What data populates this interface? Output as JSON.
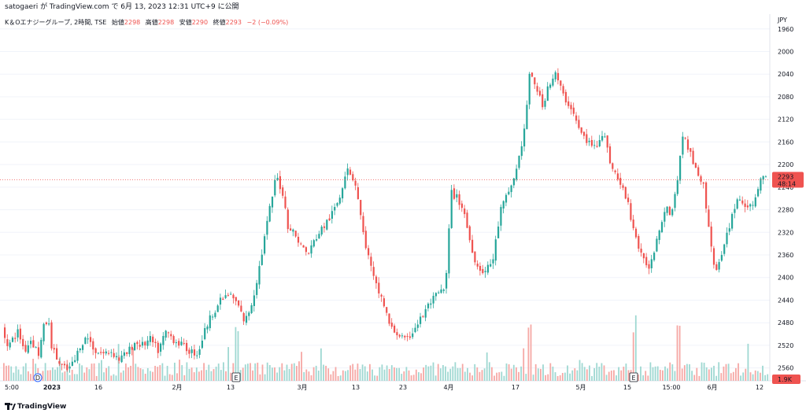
{
  "header": {
    "text": "satogaeri が TradingView.com で 6月 13, 2023 12:31 UTC+9 に公開"
  },
  "legend": {
    "symbol": "K＆Oエナジーグループ, 2時間, TSE",
    "open_label": "始値",
    "open": "2298",
    "high_label": "高値",
    "high": "2298",
    "low_label": "安値",
    "low": "2290",
    "close_label": "終値",
    "close": "2293",
    "change": "−2 (−0.09%)"
  },
  "price_axis": {
    "currency": "JPY",
    "ticks": [
      "2560",
      "2520",
      "2480",
      "2440",
      "2400",
      "2360",
      "2320",
      "2280",
      "2240",
      "2200",
      "2160",
      "2120",
      "2080",
      "2040",
      "2000",
      "1960"
    ],
    "last_price_label": "2293",
    "countdown_label": "48:14",
    "volume_label": "1.9K"
  },
  "time_axis": {
    "labels": [
      "5:00",
      "2023",
      "16",
      "2月",
      "13",
      "3月",
      "13",
      "23",
      "4月",
      "17",
      "5月",
      "15",
      "15:00",
      "6月",
      "12"
    ]
  },
  "markers": {
    "dividend": "D",
    "earnings": "E"
  },
  "colors": {
    "up": "#26a69a",
    "down": "#ef5350",
    "up_volume": "#9fd8d2",
    "down_volume": "#f6a8a5",
    "grid": "#f0f3fa"
  },
  "footer": {
    "brand": "TradingView"
  },
  "chart_data": {
    "type": "candlestick",
    "timeframe": "2時間",
    "ylim": [
      1940,
      2575
    ],
    "y_ticks": [
      1960,
      2000,
      2040,
      2080,
      2120,
      2160,
      2200,
      2240,
      2280,
      2320,
      2360,
      2400,
      2440,
      2480,
      2520,
      2560
    ],
    "last_close": 2293,
    "path": [
      [
        0,
        2030
      ],
      [
        10,
        2000
      ],
      [
        22,
        2025
      ],
      [
        30,
        1990
      ],
      [
        38,
        2010
      ],
      [
        48,
        1985
      ],
      [
        55,
        2035
      ],
      [
        60,
        2045
      ],
      [
        65,
        1995
      ],
      [
        75,
        1965
      ],
      [
        85,
        1955
      ],
      [
        95,
        1975
      ],
      [
        100,
        2000
      ],
      [
        110,
        2015
      ],
      [
        120,
        1990
      ],
      [
        130,
        1985
      ],
      [
        140,
        1990
      ],
      [
        150,
        1975
      ],
      [
        160,
        1985
      ],
      [
        170,
        2005
      ],
      [
        180,
        2000
      ],
      [
        190,
        2010
      ],
      [
        200,
        1990
      ],
      [
        210,
        2025
      ],
      [
        220,
        2010
      ],
      [
        230,
        2000
      ],
      [
        240,
        1990
      ],
      [
        250,
        1985
      ],
      [
        260,
        2030
      ],
      [
        270,
        2060
      ],
      [
        280,
        2080
      ],
      [
        290,
        2090
      ],
      [
        300,
        2075
      ],
      [
        310,
        2040
      ],
      [
        320,
        2080
      ],
      [
        330,
        2150
      ],
      [
        340,
        2230
      ],
      [
        350,
        2300
      ],
      [
        358,
        2270
      ],
      [
        365,
        2210
      ],
      [
        372,
        2200
      ],
      [
        380,
        2180
      ],
      [
        390,
        2160
      ],
      [
        400,
        2190
      ],
      [
        410,
        2210
      ],
      [
        420,
        2230
      ],
      [
        430,
        2260
      ],
      [
        440,
        2320
      ],
      [
        445,
        2300
      ],
      [
        450,
        2290
      ],
      [
        455,
        2250
      ],
      [
        460,
        2200
      ],
      [
        468,
        2150
      ],
      [
        475,
        2110
      ],
      [
        485,
        2080
      ],
      [
        495,
        2030
      ],
      [
        505,
        2020
      ],
      [
        515,
        2005
      ],
      [
        525,
        2030
      ],
      [
        535,
        2050
      ],
      [
        545,
        2075
      ],
      [
        555,
        2090
      ],
      [
        565,
        2100
      ],
      [
        572,
        2270
      ],
      [
        580,
        2260
      ],
      [
        588,
        2240
      ],
      [
        595,
        2190
      ],
      [
        605,
        2140
      ],
      [
        615,
        2130
      ],
      [
        625,
        2150
      ],
      [
        635,
        2240
      ],
      [
        645,
        2270
      ],
      [
        655,
        2310
      ],
      [
        665,
        2380
      ],
      [
        672,
        2480
      ],
      [
        680,
        2460
      ],
      [
        688,
        2420
      ],
      [
        695,
        2460
      ],
      [
        705,
        2480
      ],
      [
        715,
        2440
      ],
      [
        725,
        2420
      ],
      [
        735,
        2380
      ],
      [
        745,
        2360
      ],
      [
        755,
        2350
      ],
      [
        765,
        2380
      ],
      [
        775,
        2320
      ],
      [
        785,
        2290
      ],
      [
        795,
        2260
      ],
      [
        805,
        2200
      ],
      [
        815,
        2150
      ],
      [
        825,
        2140
      ],
      [
        835,
        2200
      ],
      [
        845,
        2250
      ],
      [
        852,
        2230
      ],
      [
        860,
        2300
      ],
      [
        868,
        2380
      ],
      [
        875,
        2340
      ],
      [
        885,
        2310
      ],
      [
        893,
        2280
      ],
      [
        900,
        2200
      ],
      [
        908,
        2130
      ],
      [
        915,
        2150
      ],
      [
        925,
        2210
      ],
      [
        935,
        2260
      ],
      [
        945,
        2250
      ],
      [
        955,
        2240
      ],
      [
        965,
        2300
      ],
      [
        972,
        2293
      ]
    ],
    "volume_spikes": [
      "2月13 E",
      "5月15 E"
    ]
  }
}
